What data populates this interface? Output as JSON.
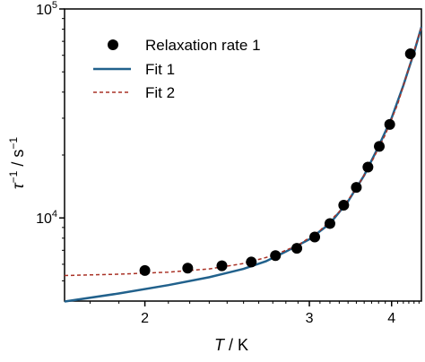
{
  "chart_data": {
    "type": "scatter",
    "xscale": "reciprocal",
    "yscale": "log",
    "xlim": [
      1.72,
      4.55
    ],
    "ylim": [
      4000,
      100000
    ],
    "x_ticks": [
      2,
      3,
      4
    ],
    "xlabel": {
      "symbol": "T",
      "unit": " / K"
    },
    "ylabel": {
      "symbol": "τ",
      "sup1": "−1",
      "mid": " / s",
      "sup2": "−1"
    },
    "y_ticks": [
      {
        "value": 10000,
        "base": "10",
        "exp": "4"
      },
      {
        "value": 100000,
        "base": "10",
        "exp": "5"
      }
    ],
    "legend": {
      "position": "top-left"
    },
    "series": [
      {
        "name": "Relaxation rate 1",
        "kind": "scatter",
        "color": "#000000",
        "x": [
          2.0,
          2.19,
          2.37,
          2.55,
          2.72,
          2.89,
          3.05,
          3.2,
          3.35,
          3.5,
          3.65,
          3.81,
          3.97,
          4.33
        ],
        "y": [
          5600,
          5750,
          5900,
          6150,
          6600,
          7150,
          8100,
          9400,
          11500,
          14000,
          17500,
          22000,
          28000,
          61000
        ]
      },
      {
        "name": "Fit 1",
        "kind": "line",
        "color": "#21618c",
        "x": [
          1.72,
          1.9,
          2.1,
          2.3,
          2.5,
          2.65,
          2.8,
          3.0,
          3.2,
          3.4,
          3.6,
          3.8,
          4.0,
          4.2,
          4.4,
          4.55
        ],
        "y": [
          3980,
          4350,
          4770,
          5200,
          5700,
          6200,
          6900,
          7900,
          9400,
          12000,
          16000,
          22000,
          30000,
          43000,
          62000,
          82000
        ]
      },
      {
        "name": "Fit 2",
        "kind": "dashed",
        "color": "#a93226",
        "x": [
          1.72,
          1.9,
          2.1,
          2.3,
          2.5,
          2.7,
          2.9,
          3.1,
          3.3,
          3.5,
          3.7,
          3.9,
          4.1,
          4.3,
          4.55
        ],
        "y": [
          5300,
          5380,
          5500,
          5700,
          6050,
          6600,
          7400,
          8700,
          10700,
          13800,
          18500,
          25000,
          35000,
          52000,
          82000
        ]
      }
    ]
  }
}
